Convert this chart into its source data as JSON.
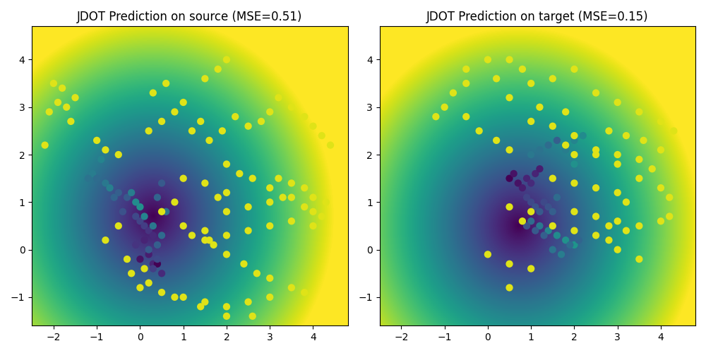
{
  "title_left": "JDOT Prediction on source (MSE=0.51)",
  "title_right": "JDOT Prediction on target (MSE=0.15)",
  "xlim": [
    -2.5,
    4.8
  ],
  "ylim": [
    -1.6,
    4.7
  ],
  "figsize": [
    10.0,
    5.0
  ],
  "dpi": 100,
  "scatter_size": 55,
  "cmap": "viridis",
  "title_fontsize": 12,
  "bg_alpha": 1.0,
  "bg_vmin": 0.0,
  "bg_vmax": 1.0
}
